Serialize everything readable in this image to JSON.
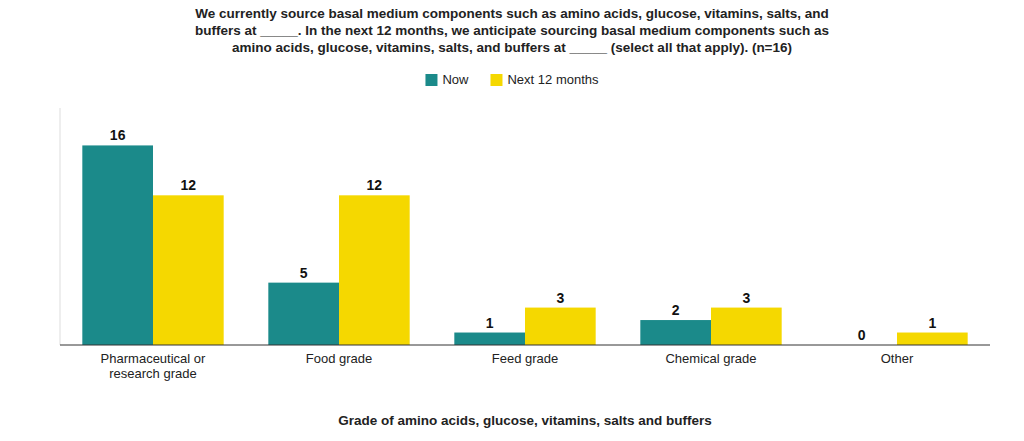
{
  "chart_data": {
    "type": "bar",
    "title": "We currently source basal medium components such as amino acids, glucose, vitamins, salts, and\nbuffers at _____. In the next 12 months, we anticipate sourcing basal medium components such as\namino acids, glucose, vitamins, salts, and buffers at _____ (select all that apply). (n=16)",
    "x_label": "Grade of amino acids, glucose, vitamins, salts and buffers",
    "categories": [
      "Pharmaceutical or\nresearch grade",
      "Food grade",
      "Feed grade",
      "Chemical grade",
      "Other"
    ],
    "series": [
      {
        "name": "Now",
        "color": "#1B8A8A",
        "values": [
          16,
          5,
          1,
          2,
          0
        ]
      },
      {
        "name": "Next 12 months",
        "color": "#F5D800",
        "values": [
          12,
          12,
          3,
          3,
          1
        ]
      }
    ],
    "ylim": [
      0,
      19
    ],
    "grid": false,
    "legend": "top",
    "data_labels": true,
    "tick_labels": "x"
  }
}
